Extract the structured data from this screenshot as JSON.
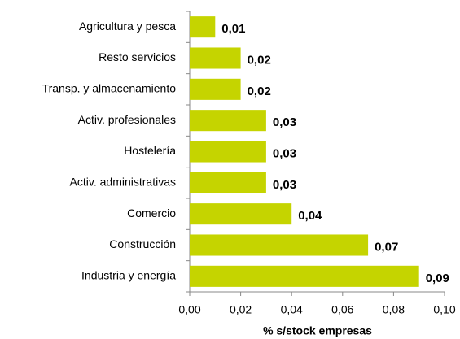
{
  "chart_data": {
    "type": "bar",
    "orientation": "horizontal",
    "categories": [
      "Agricultura y pesca",
      "Resto servicios",
      "Transp. y almacenamiento",
      "Activ. profesionales",
      "Hostelería",
      "Activ. administrativas",
      "Comercio",
      "Construcción",
      "Industria y energía"
    ],
    "values": [
      0.01,
      0.02,
      0.02,
      0.03,
      0.03,
      0.03,
      0.04,
      0.07,
      0.09
    ],
    "value_labels": [
      "0,01",
      "0,02",
      "0,02",
      "0,03",
      "0,03",
      "0,03",
      "0,04",
      "0,07",
      "0,09"
    ],
    "color": "#c5d400",
    "xlabel": "% s/stock empresas",
    "xlim": [
      0,
      0.1
    ],
    "xticks": [
      {
        "value": 0,
        "label": "0,00"
      },
      {
        "value": 0.02,
        "label": "0,02"
      },
      {
        "value": 0.04,
        "label": "0,04"
      },
      {
        "value": 0.06,
        "label": "0,06"
      },
      {
        "value": 0.08,
        "label": "0,08"
      },
      {
        "value": 0.1,
        "label": "0,10"
      }
    ],
    "grid": false
  }
}
